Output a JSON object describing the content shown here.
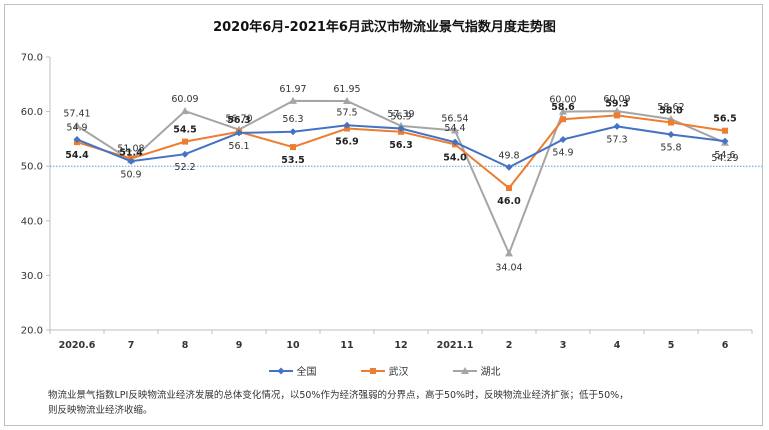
{
  "chart_data": {
    "type": "line",
    "title": "2020年6月-2021年6月武汉市物流业景气指数月度走势图",
    "categories": [
      "2020.6",
      "7",
      "8",
      "9",
      "10",
      "11",
      "12",
      "2021.1",
      "2",
      "3",
      "4",
      "5",
      "6"
    ],
    "ylim": [
      20,
      70
    ],
    "yticks": [
      "20.0",
      "30.0",
      "40.0",
      "50.0",
      "60.0",
      "70.0"
    ],
    "reference_line": 50,
    "series": [
      {
        "name": "全国",
        "color": "#4472C4",
        "marker": "diamond",
        "values": [
          54.9,
          50.9,
          52.2,
          56.1,
          56.3,
          57.5,
          56.9,
          54.4,
          49.8,
          54.9,
          57.3,
          55.8,
          54.6
        ],
        "labels": [
          "54.9",
          "50.9",
          "52.2",
          "56.1",
          "56.3",
          "57.5",
          "56.9",
          "54.4",
          "49.8",
          "54.9",
          "57.3",
          "55.8",
          "54.6"
        ]
      },
      {
        "name": "武汉",
        "color": "#ED7D31",
        "marker": "square",
        "values": [
          54.4,
          51.4,
          54.5,
          56.3,
          53.5,
          56.9,
          56.3,
          54.0,
          46.0,
          58.6,
          59.3,
          58.0,
          56.5
        ],
        "labels": [
          "54.4",
          "51.4",
          "54.5",
          "56.3",
          "53.5",
          "56.9",
          "56.3",
          "54.0",
          "46.0",
          "58.6",
          "59.3",
          "58.0",
          "56.5"
        ]
      },
      {
        "name": "湖北",
        "color": "#A5A5A5",
        "marker": "triangle",
        "values": [
          57.41,
          51.08,
          60.09,
          56.7,
          61.97,
          61.95,
          57.39,
          56.54,
          34.04,
          60.0,
          60.09,
          58.62,
          54.29
        ],
        "labels": [
          "57.41",
          "51.08",
          "60.09",
          "56.70",
          "61.97",
          "61.95",
          "57.39",
          "56.54",
          "34.04",
          "60.00",
          "60.09",
          "58.62",
          "54.29"
        ]
      }
    ]
  },
  "note_lines": [
    "物流业景气指数LPI反映物流业经济发展的总体变化情况，以50%作为经济强弱的分界点，高于50%时，反映物流业经济扩张；低于50%，",
    "则反映物流业经济收缩。"
  ]
}
